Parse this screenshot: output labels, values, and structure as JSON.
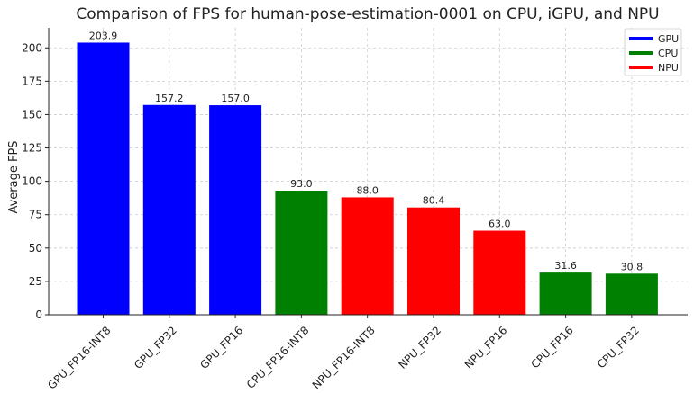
{
  "chart_data": {
    "type": "bar",
    "title": "Comparison of FPS for human-pose-estimation-0001 on CPU, iGPU, and NPU",
    "xlabel": "",
    "ylabel": "Average FPS",
    "ylim": [
      0,
      215
    ],
    "yticks": [
      0,
      25,
      50,
      75,
      100,
      125,
      150,
      175,
      200
    ],
    "grid": true,
    "legend_position": "top-right",
    "categories": [
      "GPU_FP16-INT8",
      "GPU_FP32",
      "GPU_FP16",
      "CPU_FP16-INT8",
      "NPU_FP16-INT8",
      "NPU_FP32",
      "NPU_FP16",
      "CPU_FP16",
      "CPU_FP32"
    ],
    "values": [
      203.9,
      157.2,
      157.0,
      93.0,
      88.0,
      80.4,
      63.0,
      31.6,
      30.8
    ],
    "value_labels": [
      "203.9",
      "157.2",
      "157.0",
      "93.0",
      "88.0",
      "80.4",
      "63.0",
      "31.6",
      "30.8"
    ],
    "device": [
      "GPU",
      "GPU",
      "GPU",
      "CPU",
      "NPU",
      "NPU",
      "NPU",
      "CPU",
      "CPU"
    ],
    "legend": [
      {
        "name": "GPU",
        "color": "#0000ff"
      },
      {
        "name": "CPU",
        "color": "#008000"
      },
      {
        "name": "NPU",
        "color": "#ff0000"
      }
    ]
  }
}
